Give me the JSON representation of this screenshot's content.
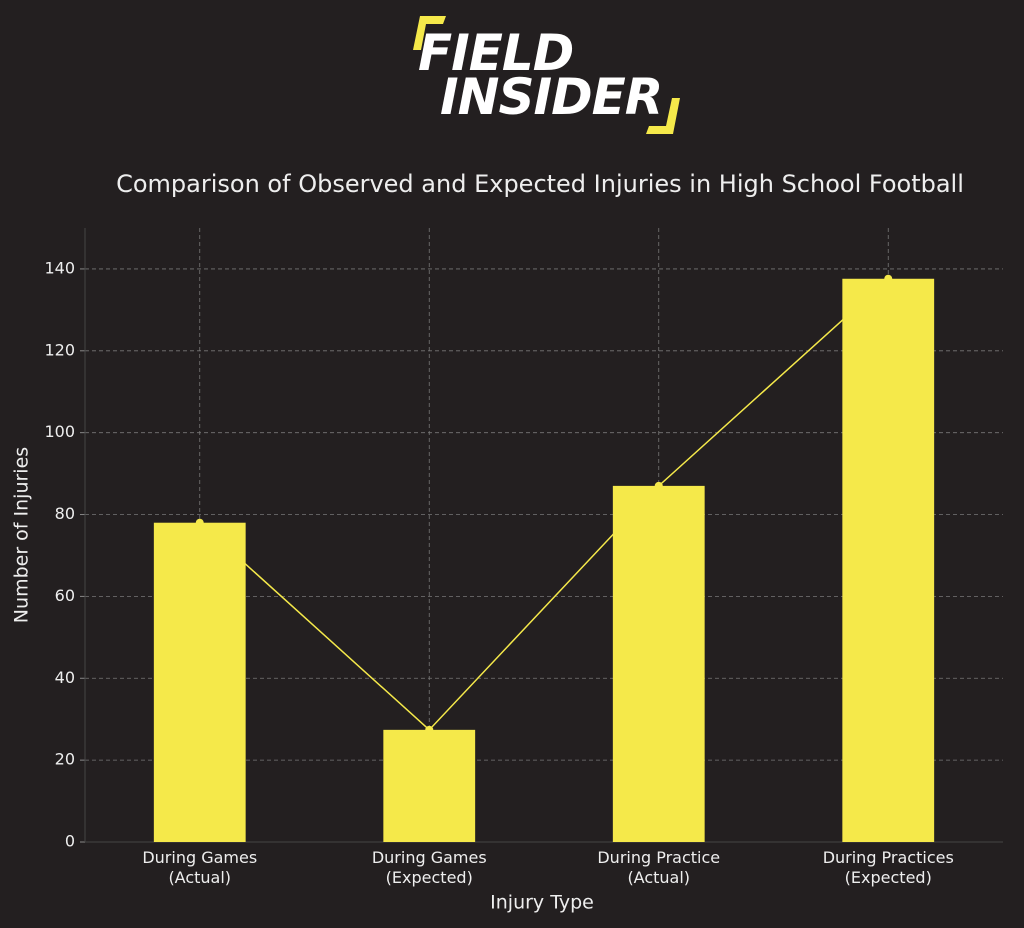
{
  "logo": {
    "line1": "FIELD",
    "line2": "INSIDER"
  },
  "chart_data": {
    "type": "bar",
    "title": "Comparison of Observed and Expected Injuries in High School Football",
    "x_label": "Injury Type",
    "y_label": "Number of Injuries",
    "categories": [
      "During Games\n(Actual)",
      "During Games\n(Expected)",
      "During Practice\n(Actual)",
      "During Practices\n(Expected)"
    ],
    "values": [
      78,
      27.4,
      87,
      137.6
    ],
    "color": "#f5e94a",
    "line_overlay": true,
    "line_color": "#f5e94a",
    "ylim": [
      0,
      150
    ],
    "yticks": [
      0,
      20,
      40,
      60,
      80,
      100,
      120,
      140
    ],
    "grid": true
  }
}
